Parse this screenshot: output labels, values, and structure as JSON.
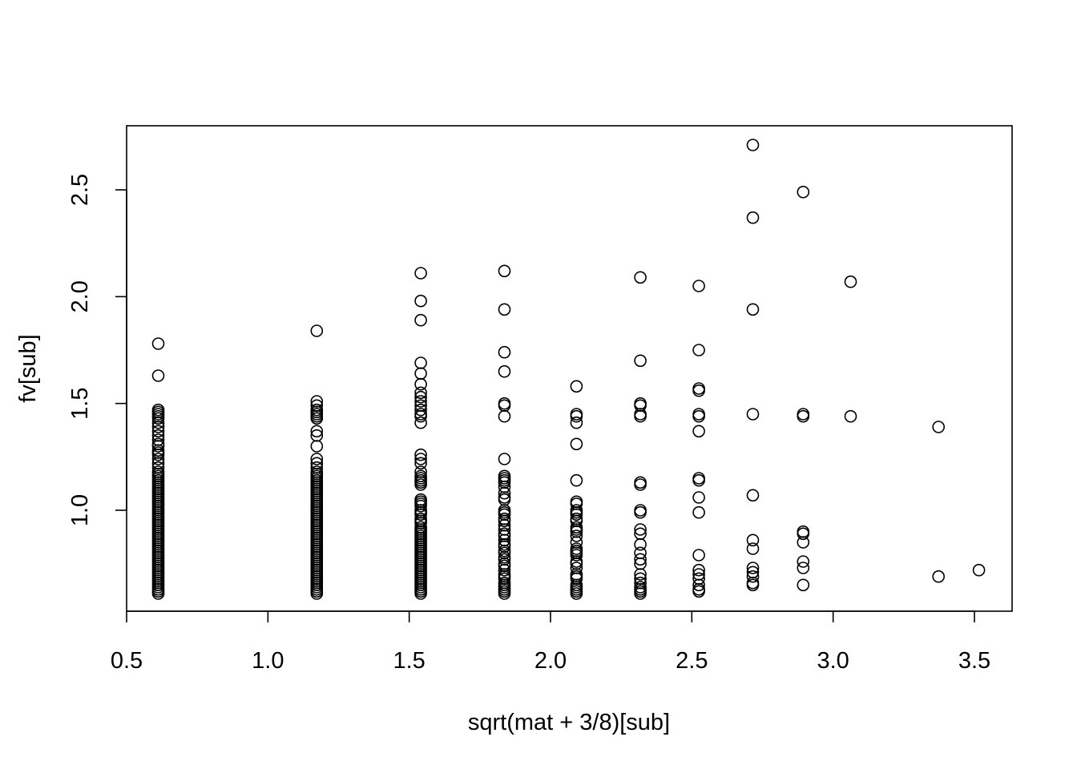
{
  "chart_data": {
    "type": "scatter",
    "title": "",
    "xlabel": "sqrt(mat + 3/8)[sub]",
    "ylabel": "fv[sub]",
    "xlim": [
      0.5,
      3.63
    ],
    "ylim": [
      0.57,
      2.74
    ],
    "x_ticks": [
      "0.5",
      "1.0",
      "1.5",
      "2.0",
      "2.5",
      "3.0",
      "3.5"
    ],
    "y_ticks": [
      "1.0",
      "1.5",
      "2.0",
      "2.5"
    ],
    "grid": false,
    "marker": "open-circle",
    "columns": [
      {
        "x": 0.612,
        "y": [
          1.78,
          1.63,
          1.47,
          1.46,
          1.45,
          1.44,
          1.43,
          1.41,
          1.39,
          1.37,
          1.35,
          1.33,
          1.31,
          1.3,
          1.28,
          1.27,
          1.26,
          1.24,
          1.22,
          1.2,
          1.18,
          1.17,
          1.16,
          1.15,
          1.14,
          1.13,
          1.12,
          1.11,
          1.1,
          1.09,
          1.08,
          1.07,
          1.06,
          1.05,
          1.04,
          1.03,
          1.02,
          1.01,
          1.0,
          0.99,
          0.98,
          0.97,
          0.96,
          0.95,
          0.94,
          0.93,
          0.92,
          0.91,
          0.9,
          0.89,
          0.88,
          0.87,
          0.86,
          0.85,
          0.84,
          0.83,
          0.82,
          0.81,
          0.8,
          0.79,
          0.78,
          0.77,
          0.76,
          0.75,
          0.74,
          0.73,
          0.72,
          0.71,
          0.7,
          0.69,
          0.68,
          0.67,
          0.66,
          0.65,
          0.64,
          0.63,
          0.62,
          0.61
        ]
      },
      {
        "x": 1.173,
        "y": [
          1.84,
          1.51,
          1.49,
          1.47,
          1.46,
          1.45,
          1.44,
          1.43,
          1.37,
          1.35,
          1.3,
          1.24,
          1.22,
          1.2,
          1.18,
          1.17,
          1.16,
          1.15,
          1.14,
          1.13,
          1.12,
          1.11,
          1.1,
          1.09,
          1.08,
          1.07,
          1.06,
          1.05,
          1.04,
          1.03,
          1.02,
          1.01,
          1.0,
          0.99,
          0.98,
          0.97,
          0.96,
          0.95,
          0.94,
          0.93,
          0.92,
          0.91,
          0.9,
          0.89,
          0.88,
          0.87,
          0.86,
          0.85,
          0.84,
          0.83,
          0.82,
          0.81,
          0.8,
          0.79,
          0.78,
          0.77,
          0.76,
          0.75,
          0.74,
          0.73,
          0.72,
          0.71,
          0.7,
          0.69,
          0.68,
          0.67,
          0.66,
          0.65,
          0.64,
          0.63,
          0.62,
          0.61
        ]
      },
      {
        "x": 1.541,
        "y": [
          2.11,
          1.98,
          1.89,
          1.69,
          1.64,
          1.59,
          1.55,
          1.53,
          1.51,
          1.49,
          1.47,
          1.45,
          1.44,
          1.41,
          1.26,
          1.24,
          1.22,
          1.18,
          1.16,
          1.15,
          1.14,
          1.13,
          1.12,
          1.05,
          1.04,
          1.03,
          1.02,
          1.0,
          0.99,
          0.98,
          0.96,
          0.95,
          0.94,
          0.92,
          0.91,
          0.9,
          0.89,
          0.88,
          0.87,
          0.86,
          0.85,
          0.84,
          0.83,
          0.82,
          0.81,
          0.8,
          0.79,
          0.78,
          0.77,
          0.76,
          0.75,
          0.74,
          0.73,
          0.72,
          0.71,
          0.7,
          0.69,
          0.68,
          0.67,
          0.66,
          0.65,
          0.64,
          0.63,
          0.62,
          0.61
        ]
      },
      {
        "x": 1.837,
        "y": [
          2.12,
          1.94,
          1.74,
          1.65,
          1.5,
          1.49,
          1.44,
          1.24,
          1.16,
          1.15,
          1.14,
          1.13,
          1.11,
          1.08,
          1.06,
          1.05,
          1.0,
          0.99,
          0.98,
          0.96,
          0.95,
          0.93,
          0.91,
          0.89,
          0.88,
          0.86,
          0.84,
          0.83,
          0.81,
          0.8,
          0.78,
          0.77,
          0.75,
          0.74,
          0.72,
          0.7,
          0.69,
          0.68,
          0.66,
          0.65,
          0.64,
          0.63,
          0.62,
          0.61
        ]
      },
      {
        "x": 2.092,
        "y": [
          1.58,
          1.45,
          1.44,
          1.41,
          1.31,
          1.14,
          1.04,
          1.03,
          1.0,
          0.99,
          0.98,
          0.96,
          0.95,
          0.92,
          0.91,
          0.9,
          0.88,
          0.85,
          0.82,
          0.81,
          0.8,
          0.79,
          0.76,
          0.75,
          0.73,
          0.7,
          0.69,
          0.68,
          0.65,
          0.64,
          0.63,
          0.62,
          0.61
        ]
      },
      {
        "x": 2.318,
        "y": [
          2.09,
          1.7,
          1.5,
          1.49,
          1.45,
          1.44,
          1.13,
          1.12,
          1.0,
          0.99,
          0.91,
          0.89,
          0.84,
          0.8,
          0.77,
          0.75,
          0.7,
          0.68,
          0.66,
          0.64,
          0.63,
          0.62,
          0.61
        ]
      },
      {
        "x": 2.525,
        "y": [
          2.05,
          1.75,
          1.57,
          1.56,
          1.45,
          1.44,
          1.37,
          1.15,
          1.14,
          1.06,
          0.99,
          0.79,
          0.72,
          0.7,
          0.68,
          0.65,
          0.63,
          0.62
        ]
      },
      {
        "x": 2.716,
        "y": [
          2.71,
          2.37,
          1.94,
          1.45,
          1.07,
          0.86,
          0.82,
          0.73,
          0.71,
          0.69,
          0.66,
          0.65
        ]
      },
      {
        "x": 2.894,
        "y": [
          2.49,
          1.45,
          1.44,
          0.9,
          0.89,
          0.85,
          0.76,
          0.73,
          0.65
        ]
      },
      {
        "x": 3.062,
        "y": [
          2.07,
          1.44
        ]
      },
      {
        "x": 3.373,
        "y": [
          1.39,
          0.69
        ]
      },
      {
        "x": 3.516,
        "y": [
          0.72
        ]
      }
    ]
  }
}
